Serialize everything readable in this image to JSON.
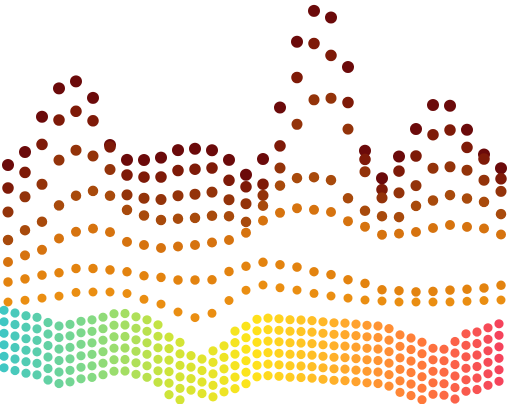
{
  "artwork": {
    "kind": "abstract dotted wave composition",
    "background": "#ffffff",
    "upper_palette": [
      "#6b0a0a",
      "#7e1a08",
      "#93330a",
      "#a84a0c",
      "#c0600d",
      "#d6730f",
      "#e3830f",
      "#ea8e12"
    ],
    "lower_palette": [
      "#3dc6c6",
      "#7ed98a",
      "#cde43a",
      "#ffe41a",
      "#ffae2b",
      "#ff7a3a",
      "#f43f5e"
    ]
  }
}
